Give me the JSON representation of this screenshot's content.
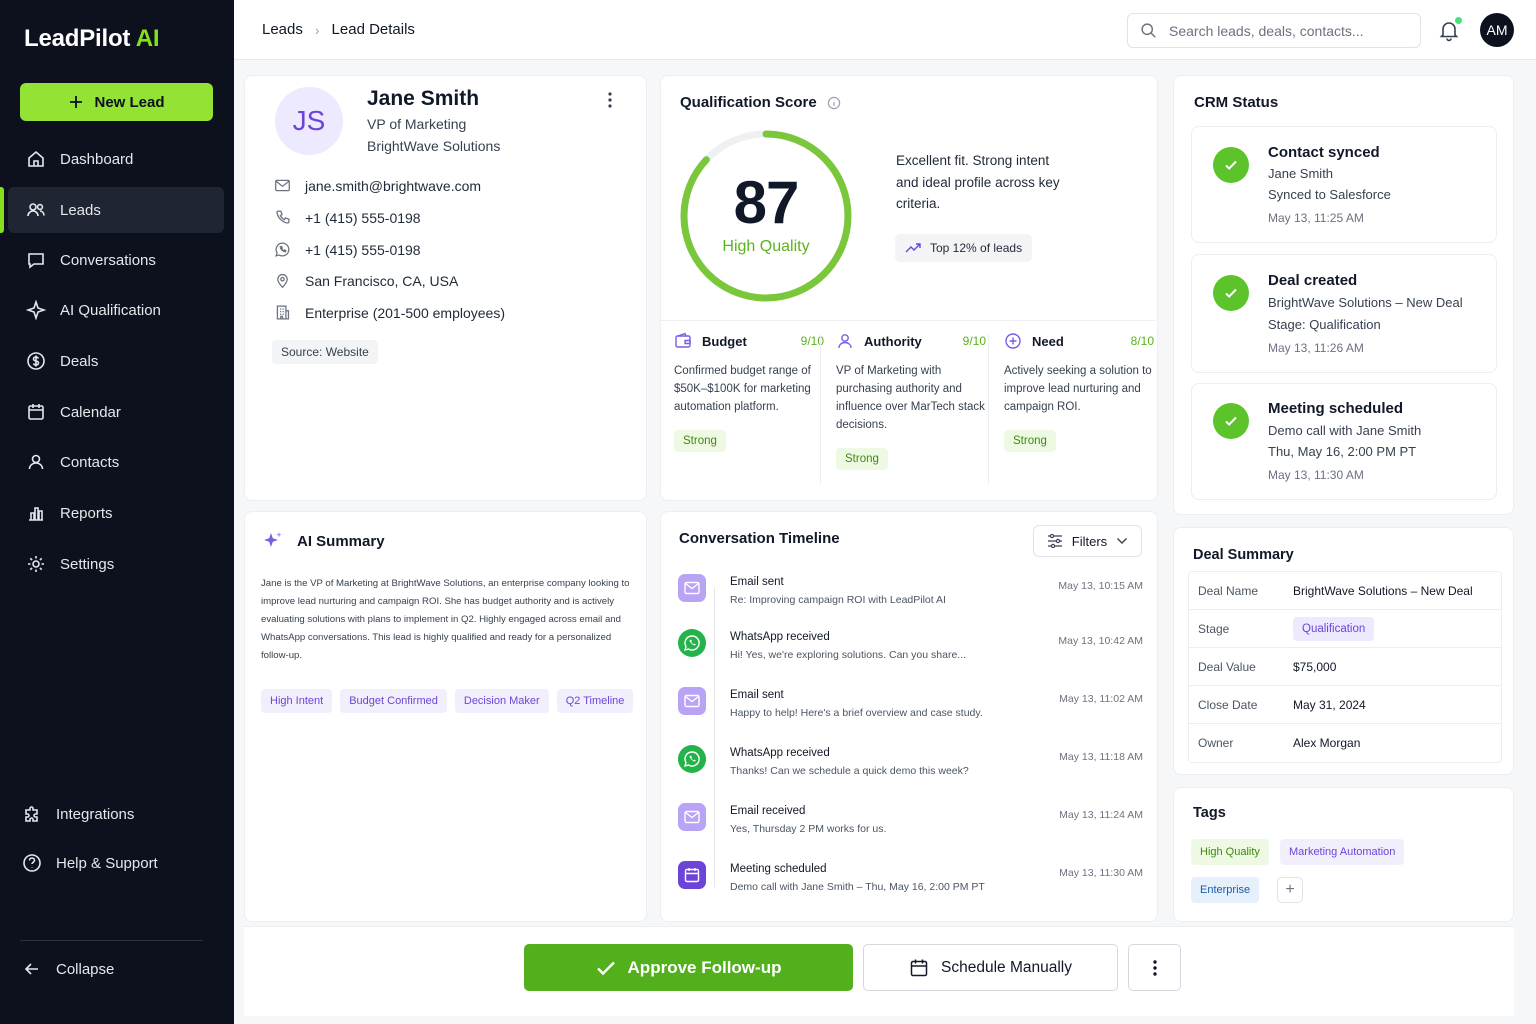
{
  "app": {
    "brand_main": "LeadPilot",
    "brand_accent": "AI",
    "accent_color": "#84e01e"
  },
  "sidebar": {
    "new_lead": "New Lead",
    "items": [
      {
        "label": "Dashboard",
        "icon": "home-icon"
      },
      {
        "label": "Leads",
        "icon": "users-icon",
        "active": true
      },
      {
        "label": "Conversations",
        "icon": "chat-icon"
      },
      {
        "label": "AI Qualification",
        "icon": "sparkle-icon"
      },
      {
        "label": "Deals",
        "icon": "dollar-icon"
      },
      {
        "label": "Calendar",
        "icon": "calendar-icon"
      },
      {
        "label": "Contacts",
        "icon": "user-icon"
      },
      {
        "label": "Reports",
        "icon": "chart-icon"
      },
      {
        "label": "Settings",
        "icon": "gear-icon"
      }
    ],
    "integrations": "Integrations",
    "help": "Help & Support",
    "collapse": "Collapse"
  },
  "topbar": {
    "breadcrumb": [
      "Leads",
      "Lead Details"
    ],
    "search_placeholder": "Search leads, deals, contacts...",
    "avatar": "AM"
  },
  "profile": {
    "initials": "JS",
    "name": "Jane Smith",
    "title": "VP of Marketing",
    "company": "BrightWave Solutions",
    "email": "jane.smith@brightwave.com",
    "phone": "+1 (415) 555-0198",
    "whatsapp": "+1 (415) 555-0198",
    "location": "San Francisco, CA, USA",
    "size": "Enterprise (201-500 employees)",
    "source": "Source: Website"
  },
  "qualification": {
    "title": "Qualification Score",
    "score": "87",
    "score_fraction": 0.87,
    "label": "High Quality",
    "description": "Excellent fit. Strong intent and ideal profile across key criteria.",
    "top": "Top 12% of leads",
    "criteria": [
      {
        "name": "Budget",
        "value": "9/10",
        "text": "Confirmed budget range of $50K–$100K for marketing automation platform.",
        "badge": "Strong"
      },
      {
        "name": "Authority",
        "value": "9/10",
        "text": "VP of Marketing with purchasing authority and influence over MarTech stack decisions.",
        "badge": "Strong"
      },
      {
        "name": "Need",
        "value": "8/10",
        "text": "Actively seeking a solution to improve lead nurturing and campaign ROI.",
        "badge": "Strong"
      }
    ]
  },
  "crm": {
    "title": "CRM Status",
    "items": [
      {
        "title": "Contact synced",
        "line1": "Jane Smith",
        "line2": "Synced to Salesforce",
        "time": "May 13, 11:25 AM"
      },
      {
        "title": "Deal created",
        "line1": "BrightWave Solutions – New Deal",
        "line2": "Stage: Qualification",
        "time": "May 13, 11:26 AM"
      },
      {
        "title": "Meeting scheduled",
        "line1": "Demo call with Jane Smith",
        "line2": "Thu, May 16, 2:00 PM PT",
        "time": "May 13, 11:30 AM"
      }
    ]
  },
  "ai_summary": {
    "title": "AI Summary",
    "text": "Jane is the VP of Marketing at BrightWave Solutions, an enterprise company looking to improve lead nurturing and campaign ROI. She has budget authority and is actively evaluating solutions with plans to implement in Q2. Highly engaged across email and WhatsApp conversations. This lead is highly qualified and ready for a personalized follow-up.",
    "tags": [
      "High Intent",
      "Budget Confirmed",
      "Decision Maker",
      "Q2 Timeline"
    ]
  },
  "timeline": {
    "title": "Conversation Timeline",
    "filters": "Filters",
    "items": [
      {
        "type": "email",
        "title": "Email sent",
        "sub": "Re: Improving campaign ROI with LeadPilot AI",
        "time": "May 13, 10:15 AM"
      },
      {
        "type": "wa",
        "title": "WhatsApp received",
        "sub": "Hi! Yes, we're exploring solutions. Can you share...",
        "time": "May 13, 10:42 AM"
      },
      {
        "type": "email",
        "title": "Email sent",
        "sub": "Happy to help! Here's a brief overview and case study.",
        "time": "May 13, 11:02 AM"
      },
      {
        "type": "wa",
        "title": "WhatsApp received",
        "sub": "Thanks! Can we schedule a quick demo this week?",
        "time": "May 13, 11:18 AM"
      },
      {
        "type": "email",
        "title": "Email received",
        "sub": "Yes, Thursday 2 PM works for us.",
        "time": "May 13, 11:24 AM"
      },
      {
        "type": "cal",
        "title": "Meeting scheduled",
        "sub": "Demo call with Jane Smith – Thu, May 16, 2:00 PM PT",
        "time": "May 13, 11:30 AM"
      }
    ]
  },
  "deal": {
    "title": "Deal Summary",
    "rows": [
      {
        "k": "Deal Name",
        "v": "BrightWave Solutions – New Deal"
      },
      {
        "k": "Stage",
        "v": "Qualification"
      },
      {
        "k": "Deal Value",
        "v": "$75,000"
      },
      {
        "k": "Close Date",
        "v": "May 31, 2024"
      },
      {
        "k": "Owner",
        "v": "Alex Morgan"
      }
    ]
  },
  "tags": {
    "title": "Tags",
    "items": [
      "High Quality",
      "Marketing Automation",
      "Enterprise"
    ],
    "add": "+"
  },
  "actions": {
    "approve": "Approve Follow-up",
    "schedule": "Schedule Manually"
  }
}
